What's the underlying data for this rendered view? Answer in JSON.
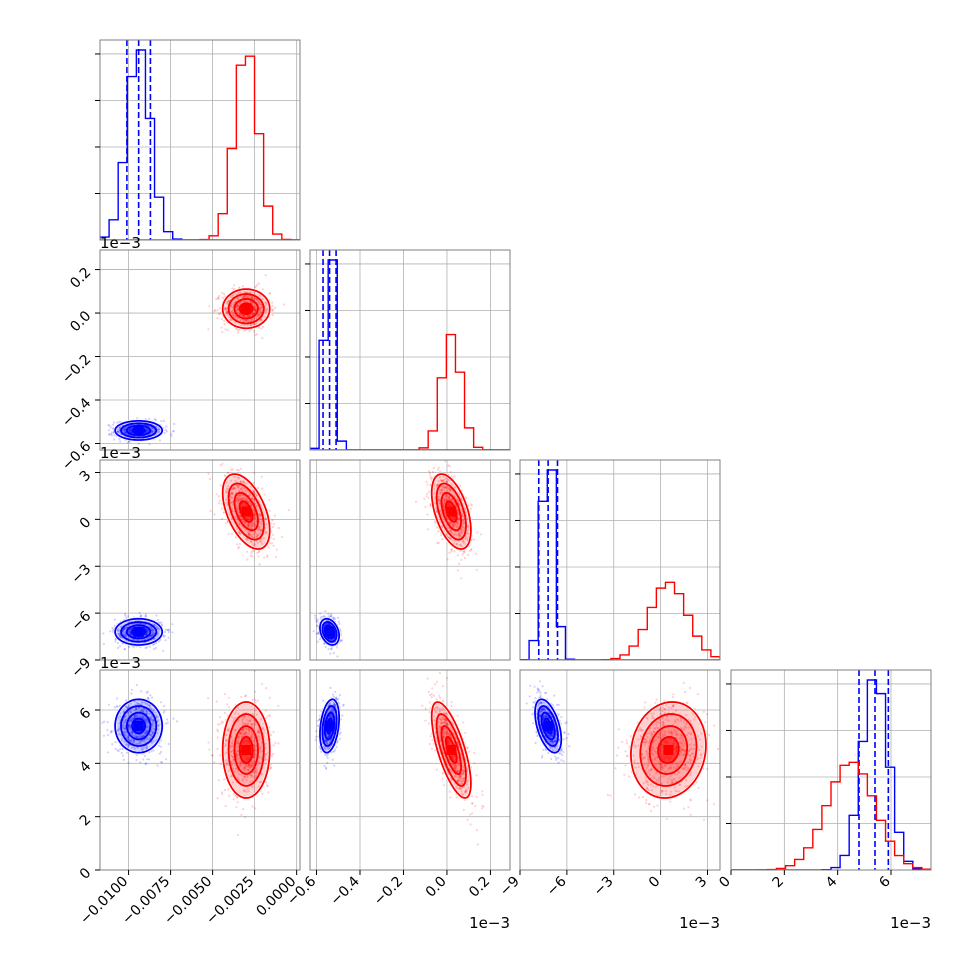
{
  "figure": {
    "type": "corner-plot"
  },
  "colors": {
    "blue": "#0000ff",
    "red": "#ff0000",
    "grid": "#b0b0b0",
    "frame": "#808080"
  },
  "params": [
    {
      "range": [
        -0.0117,
        0.0002
      ],
      "ticks": [
        -0.01,
        -0.0075,
        -0.005,
        -0.0025,
        0.0
      ],
      "tick_labels": [
        "−0.0100",
        "−0.0075",
        "−0.0050",
        "−0.0025",
        "0.0000"
      ],
      "offset": ""
    },
    {
      "range": [
        -0.63,
        0.29
      ],
      "ticks": [
        -0.6,
        -0.4,
        -0.2,
        0.0,
        0.2
      ],
      "tick_labels": [
        "−0.6",
        "−0.4",
        "−0.2",
        "0.0",
        "0.2"
      ],
      "offset": "1e−3"
    },
    {
      "range": [
        -9.0,
        3.8
      ],
      "ticks": [
        -9,
        -6,
        -3,
        0,
        3
      ],
      "tick_labels": [
        "−9",
        "−6",
        "−3",
        "0",
        "3"
      ],
      "offset": "1e−3"
    },
    {
      "range": [
        0,
        7.5
      ],
      "ticks": [
        0,
        2,
        4,
        6
      ],
      "tick_labels": [
        "0",
        "2",
        "4",
        "6"
      ],
      "offset": "1e−3"
    }
  ],
  "chart_data": {
    "type": "scatter",
    "description_note": "",
    "series": [
      {
        "name": "",
        "color": "#0000ff",
        "mean": [
          -0.0094,
          -0.54,
          -7.2,
          5.4
        ],
        "std": [
          0.0007,
          0.022,
          0.42,
          0.5
        ],
        "corr": {
          "0-1": 0.0,
          "0-2": 0.0,
          "0-3": 0.0,
          "1-2": -0.3,
          "1-3": 0.3,
          "2-3": -0.5
        },
        "quantiles": [
          [
            -0.0101,
            -0.0094,
            -0.0087
          ],
          [
            -0.57,
            -0.54,
            -0.51
          ],
          [
            -7.8,
            -7.2,
            -6.6
          ],
          [
            4.8,
            5.4,
            5.9
          ]
        ]
      },
      {
        "name": "",
        "color": "#ff0000",
        "mean": [
          -0.003,
          0.02,
          0.5,
          4.5
        ],
        "std": [
          0.0007,
          0.045,
          1.2,
          0.9
        ],
        "corr": {
          "0-1": 0.0,
          "0-2": -0.5,
          "0-3": 0.0,
          "1-2": -0.5,
          "1-3": -0.7,
          "2-3": 0.1
        },
        "quantiles": []
      }
    ],
    "axis_offset_label": "1e−3",
    "grid": true
  }
}
